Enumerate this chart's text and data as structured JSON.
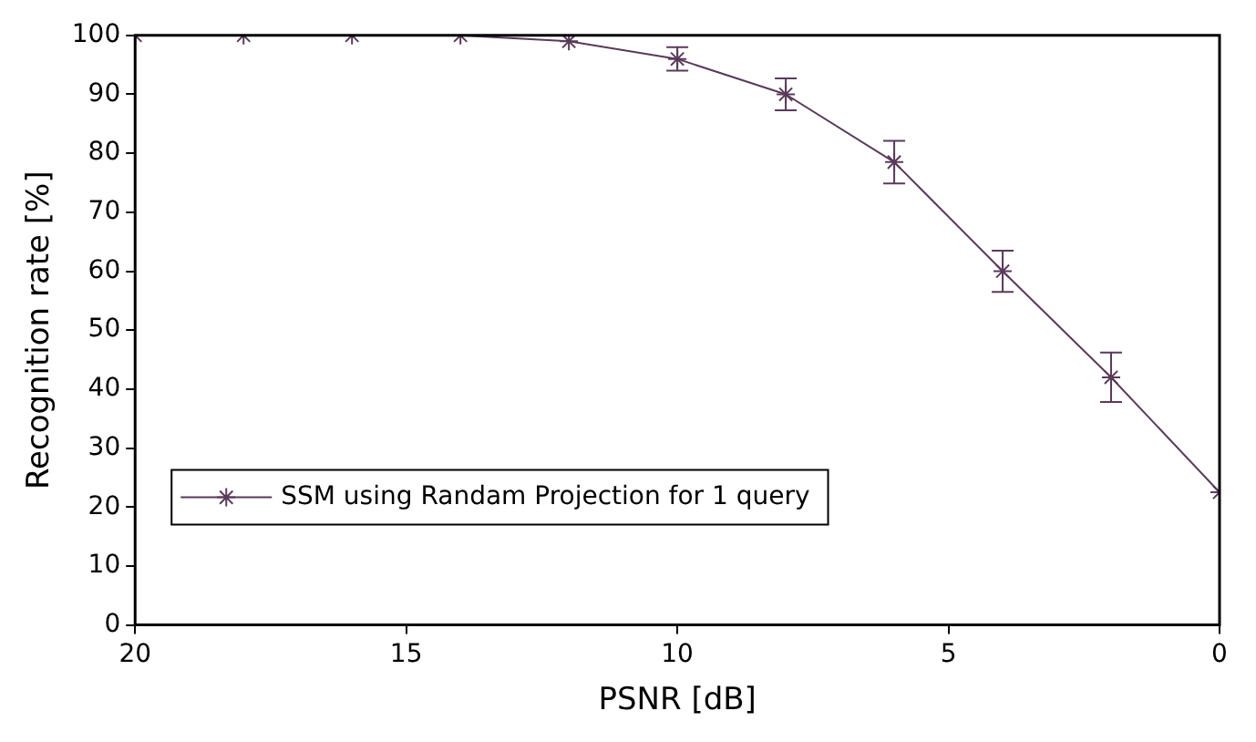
{
  "chart_data": {
    "type": "line",
    "xlabel": "PSNR [dB]",
    "ylabel": "Recognition rate [%]",
    "x": [
      20,
      18,
      16,
      14,
      12,
      10,
      8,
      6,
      4,
      2,
      0
    ],
    "series": [
      {
        "name": "SSM using Randam Projection for 1 query",
        "color": "#5a3a5a",
        "values": [
          100,
          100,
          100,
          100,
          99,
          96,
          90,
          78.5,
          60,
          42,
          22.5
        ],
        "errors": [
          null,
          null,
          null,
          null,
          null,
          2,
          2.7,
          3.6,
          3.5,
          4.2,
          null
        ]
      }
    ],
    "xlim": [
      20,
      0
    ],
    "xticks": [
      20,
      15,
      10,
      5,
      0
    ],
    "ylim": [
      0,
      100
    ],
    "yticks": [
      0,
      10,
      20,
      30,
      40,
      50,
      60,
      70,
      80,
      90,
      100
    ],
    "grid": false,
    "legend": "bottom left",
    "marker": "cross",
    "line_style": "solid"
  }
}
